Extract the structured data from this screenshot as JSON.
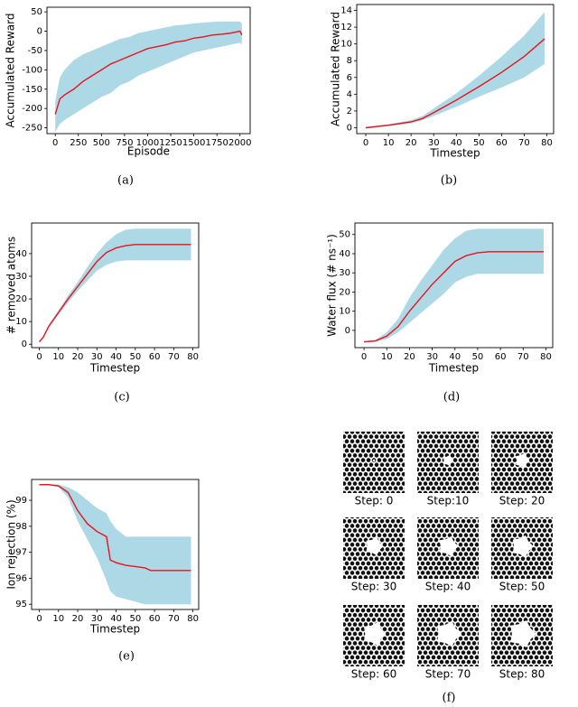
{
  "chart_data": [
    {
      "type": "band_line",
      "caption": "(a)",
      "xlabel": "Episode",
      "ylabel": "Accumulated Reward",
      "color": "#e8141c",
      "band_color": "#add8e6",
      "x": [
        0,
        50,
        100,
        200,
        300,
        400,
        500,
        600,
        700,
        800,
        900,
        1000,
        1100,
        1200,
        1300,
        1400,
        1500,
        1600,
        1700,
        1800,
        1900,
        2000,
        2020
      ],
      "values": [
        -215,
        -175,
        -165,
        -150,
        -130,
        -115,
        -100,
        -85,
        -75,
        -65,
        -55,
        -45,
        -40,
        -35,
        -28,
        -25,
        -18,
        -15,
        -10,
        -8,
        -5,
        0,
        -10
      ],
      "lower": [
        -260,
        -240,
        -230,
        -215,
        -200,
        -185,
        -170,
        -160,
        -140,
        -130,
        -115,
        -105,
        -95,
        -85,
        -75,
        -65,
        -55,
        -50,
        -45,
        -40,
        -35,
        -30,
        -35
      ],
      "upper": [
        -180,
        -120,
        -100,
        -75,
        -60,
        -50,
        -40,
        -30,
        -20,
        -15,
        -5,
        0,
        5,
        10,
        15,
        17,
        20,
        22,
        24,
        25,
        25,
        25,
        20
      ],
      "xlim": [
        -90,
        2110
      ],
      "ylim": [
        -265,
        62
      ],
      "xticks": [
        0,
        250,
        500,
        750,
        1000,
        1250,
        1500,
        1750,
        2000
      ],
      "yticks": [
        -250,
        -200,
        -150,
        -100,
        -50,
        0,
        50
      ]
    },
    {
      "type": "band_line",
      "caption": "(b)",
      "xlabel": "Timestep",
      "ylabel": "Accumulated Reward",
      "color": "#e8141c",
      "band_color": "#add8e6",
      "x": [
        0,
        10,
        20,
        25,
        30,
        40,
        50,
        60,
        70,
        79
      ],
      "values": [
        0,
        0.3,
        0.7,
        1.1,
        1.8,
        3.3,
        4.9,
        6.6,
        8.5,
        10.6
      ],
      "lower": [
        0,
        0.2,
        0.5,
        0.9,
        1.4,
        2.5,
        3.7,
        4.8,
        6.0,
        7.6
      ],
      "upper": [
        0.1,
        0.4,
        0.9,
        1.4,
        2.3,
        4.1,
        6.2,
        8.5,
        11.0,
        13.8
      ],
      "xlim": [
        -4,
        83
      ],
      "ylim": [
        -0.7,
        14.7
      ],
      "xticks": [
        0,
        10,
        20,
        30,
        40,
        50,
        60,
        70,
        80
      ],
      "yticks": [
        0,
        2,
        4,
        6,
        8,
        10,
        12,
        14
      ]
    },
    {
      "type": "band_line",
      "caption": "(c)",
      "xlabel": "Timestep",
      "ylabel": "# removed atoms",
      "color": "#e8141c",
      "band_color": "#add8e6",
      "x": [
        0,
        2,
        5,
        10,
        15,
        20,
        25,
        30,
        35,
        40,
        45,
        50,
        55,
        60,
        70,
        79
      ],
      "values": [
        1,
        3,
        8,
        14,
        20,
        25.5,
        31,
        36.5,
        40.5,
        42.5,
        43.5,
        44,
        44,
        44,
        44,
        44
      ],
      "lower": [
        1,
        3,
        7.5,
        13,
        18.5,
        23.5,
        28,
        32.5,
        35,
        36.5,
        37,
        37,
        37,
        37,
        37,
        37
      ],
      "upper": [
        1,
        3.5,
        8.5,
        15,
        21.5,
        27.5,
        34,
        40,
        45,
        48.5,
        50.5,
        51,
        51,
        51,
        51,
        51
      ],
      "xlim": [
        -4,
        83
      ],
      "ylim": [
        -1.5,
        53.5
      ],
      "xticks": [
        0,
        10,
        20,
        30,
        40,
        50,
        60,
        70,
        80
      ],
      "yticks": [
        0,
        10,
        20,
        30,
        40
      ]
    },
    {
      "type": "band_line",
      "caption": "(d)",
      "xlabel": "Timestep",
      "ylabel": "Water flux (# ns⁻¹)",
      "color": "#e8141c",
      "band_color": "#add8e6",
      "x": [
        0,
        5,
        10,
        15,
        20,
        25,
        30,
        35,
        40,
        45,
        50,
        55,
        60,
        70,
        79
      ],
      "values": [
        -6,
        -5.5,
        -3,
        2,
        10,
        17,
        24,
        30,
        36,
        39,
        40.5,
        41,
        41,
        41,
        41
      ],
      "lower": [
        -6,
        -6,
        -4.5,
        -1,
        4,
        9,
        14,
        19,
        25,
        28,
        29.5,
        29.5,
        29.5,
        29.5,
        29.5
      ],
      "upper": [
        -6,
        -5,
        -1,
        6,
        17,
        26,
        34,
        42,
        48,
        52,
        53,
        53,
        53,
        53,
        53
      ],
      "xlim": [
        -4,
        83
      ],
      "ylim": [
        -9,
        56
      ],
      "xticks": [
        0,
        10,
        20,
        30,
        40,
        50,
        60,
        70,
        80
      ],
      "yticks": [
        0,
        10,
        20,
        30,
        40,
        50
      ]
    },
    {
      "type": "band_line",
      "caption": "(e)",
      "xlabel": "Timestep",
      "ylabel": "Ion rejection (%)",
      "color": "#e8141c",
      "band_color": "#add8e6",
      "x": [
        0,
        5,
        10,
        15,
        20,
        25,
        30,
        35,
        37,
        40,
        45,
        50,
        55,
        58,
        70,
        79
      ],
      "values": [
        99.6,
        99.6,
        99.55,
        99.3,
        98.6,
        98.1,
        97.8,
        97.6,
        96.7,
        96.6,
        96.5,
        96.45,
        96.4,
        96.3,
        96.3,
        96.3
      ],
      "lower": [
        99.6,
        99.6,
        99.5,
        99.1,
        98.2,
        97.5,
        96.8,
        95.9,
        95.5,
        95.3,
        95.2,
        95.1,
        95.0,
        95.0,
        95.0,
        95.0
      ],
      "upper": [
        99.6,
        99.6,
        99.6,
        99.5,
        99.3,
        99.0,
        98.7,
        98.5,
        98.2,
        97.9,
        97.6,
        97.6,
        97.6,
        97.6,
        97.6,
        97.6
      ],
      "xlim": [
        -4,
        83
      ],
      "ylim": [
        94.8,
        99.8
      ],
      "xticks": [
        0,
        10,
        20,
        30,
        40,
        50,
        60,
        70,
        80
      ],
      "yticks": [
        95,
        96,
        97,
        98,
        99
      ]
    }
  ],
  "panel_f": {
    "caption": "(f)",
    "images": [
      {
        "label": "Step: 0"
      },
      {
        "label": "Step:10"
      },
      {
        "label": "Step: 20"
      },
      {
        "label": "Step: 30"
      },
      {
        "label": "Step: 40"
      },
      {
        "label": "Step: 50"
      },
      {
        "label": "Step: 60"
      },
      {
        "label": "Step: 70"
      },
      {
        "label": "Step: 80"
      }
    ]
  }
}
